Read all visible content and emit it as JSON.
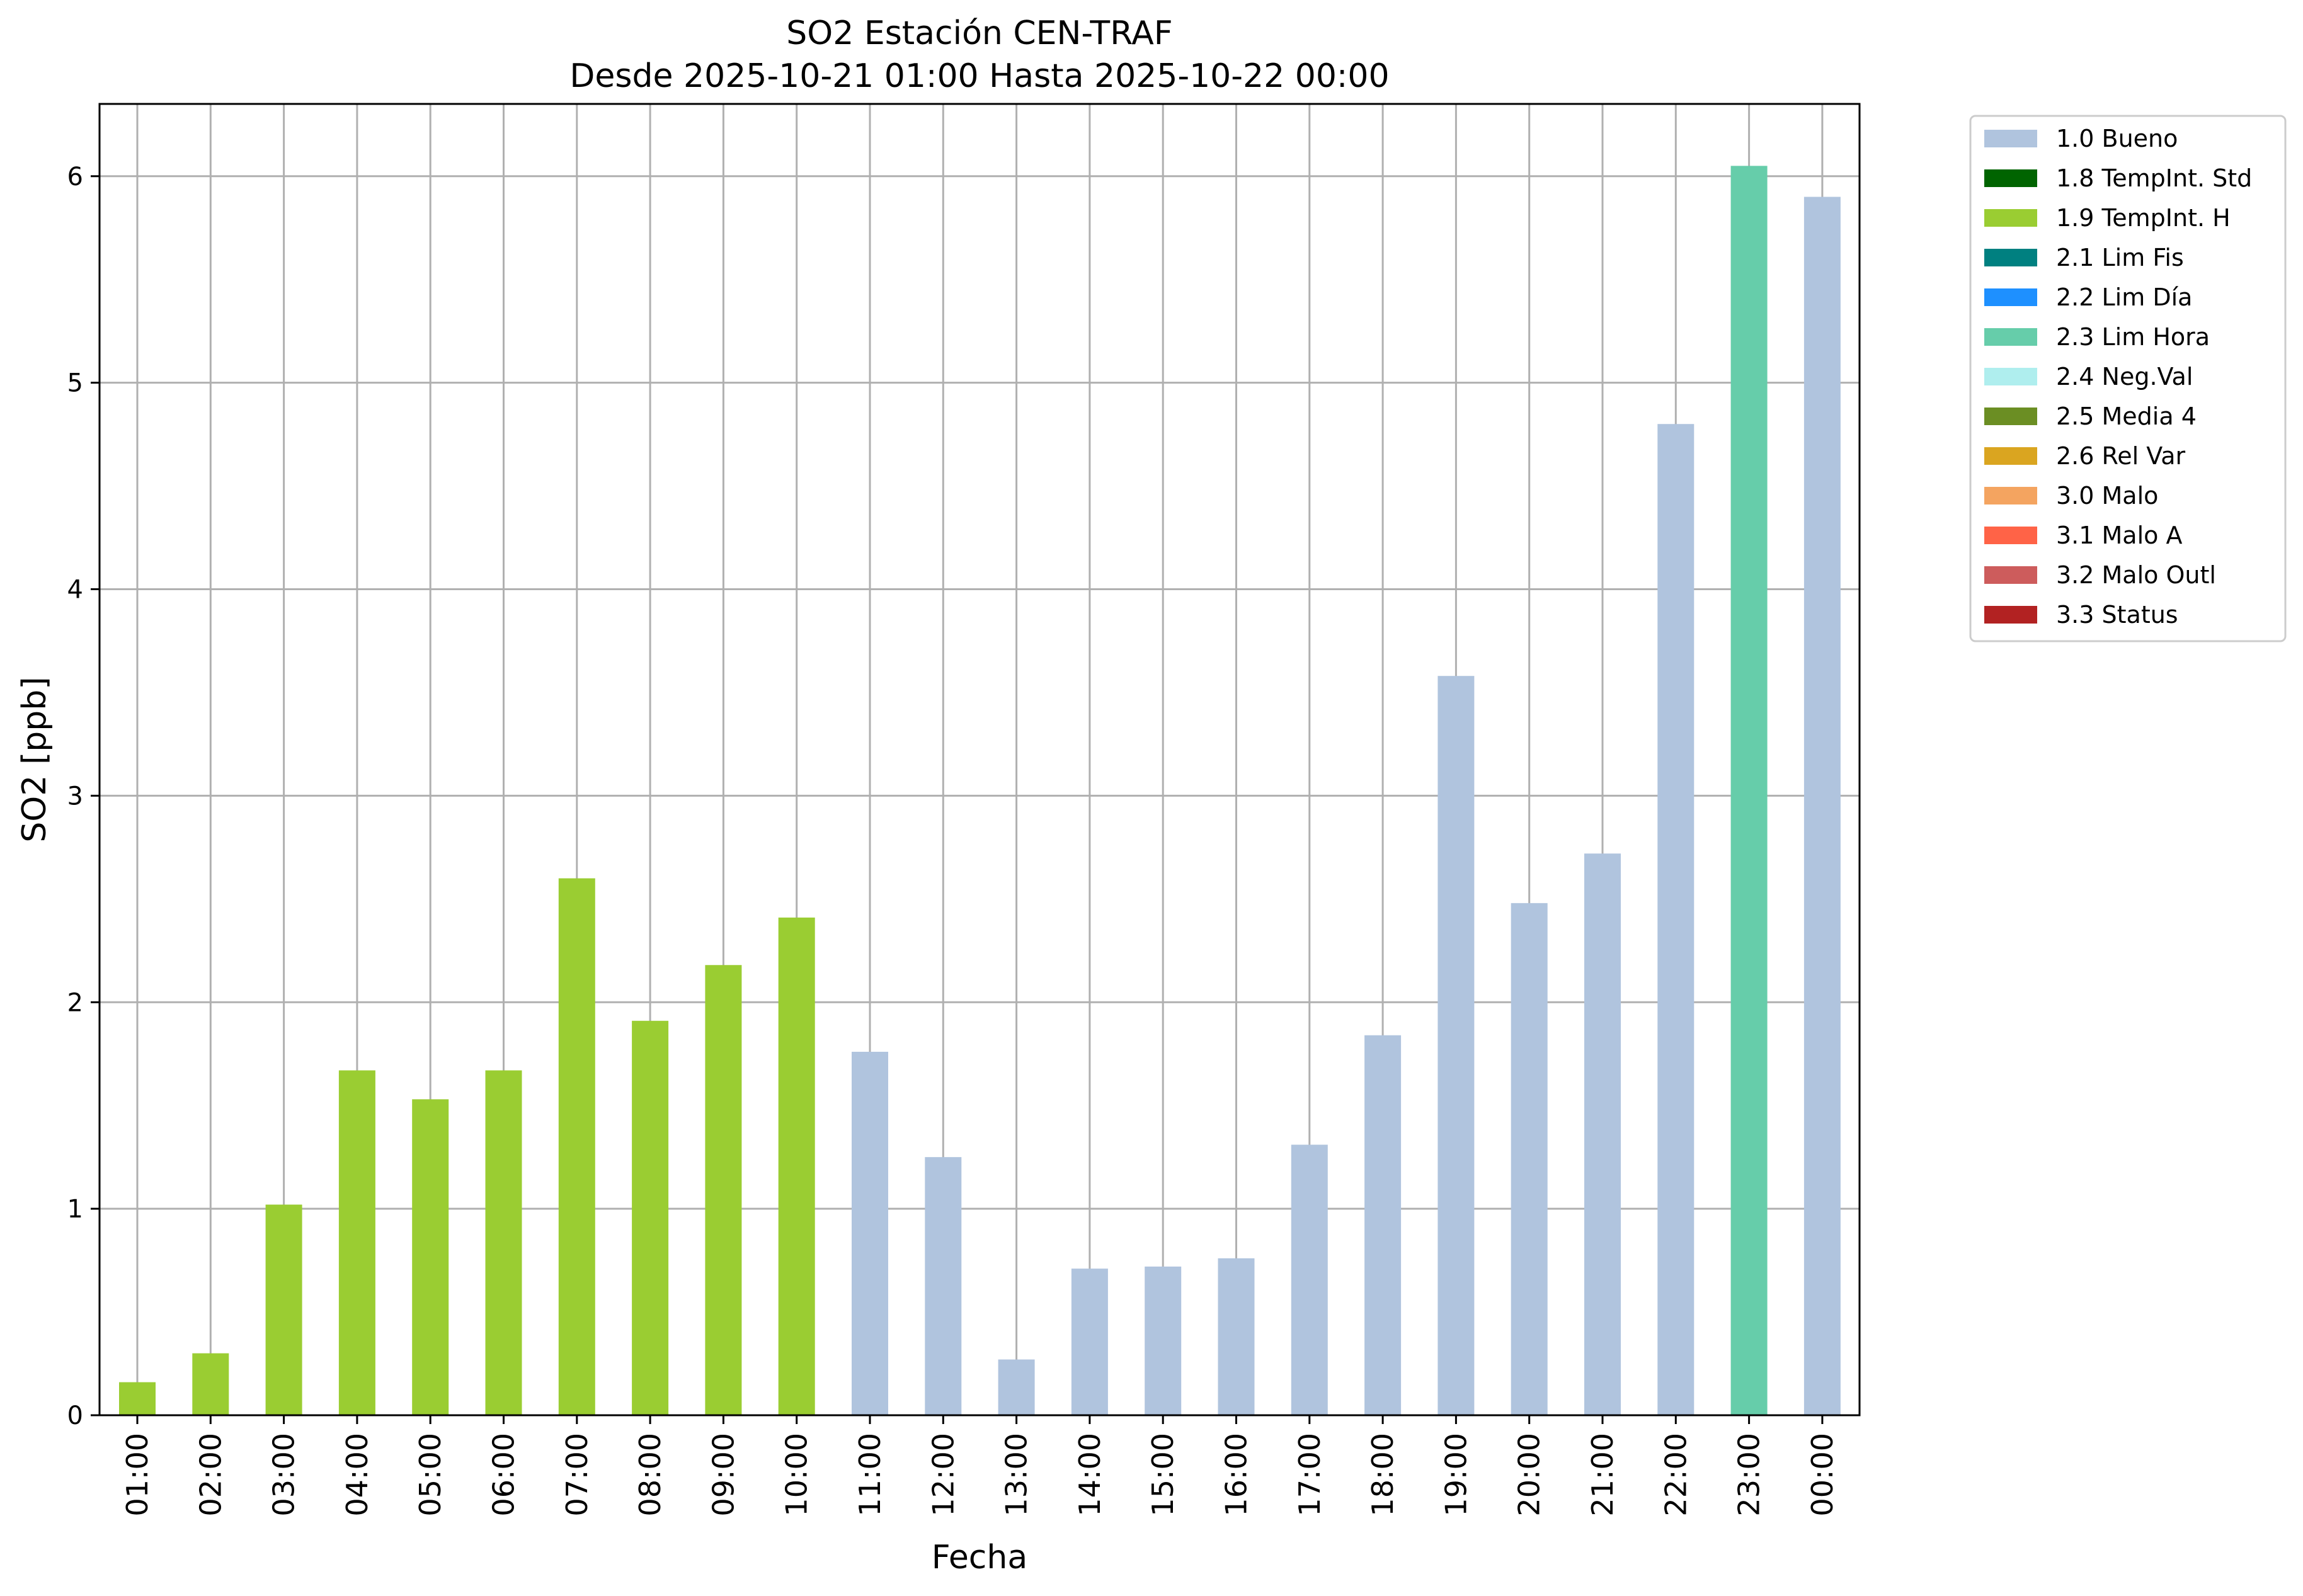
{
  "chart_data": {
    "type": "bar",
    "title": "SO2 Estación CEN-TRAF",
    "subtitle": "Desde 2025-10-21 01:00 Hasta 2025-10-22 00:00",
    "xlabel": "Fecha",
    "ylabel": "SO2 [ppb]",
    "ylim": [
      0,
      6.35
    ],
    "yticks": [
      0,
      1,
      2,
      3,
      4,
      5,
      6
    ],
    "grid": true,
    "legend_position": "outside-top-right",
    "categories": [
      "01:00",
      "02:00",
      "03:00",
      "04:00",
      "05:00",
      "06:00",
      "07:00",
      "08:00",
      "09:00",
      "10:00",
      "11:00",
      "12:00",
      "13:00",
      "14:00",
      "15:00",
      "16:00",
      "17:00",
      "18:00",
      "19:00",
      "20:00",
      "21:00",
      "22:00",
      "23:00",
      "00:00"
    ],
    "values": [
      0.16,
      0.3,
      1.02,
      1.67,
      1.53,
      1.67,
      2.6,
      1.91,
      2.18,
      2.41,
      1.76,
      1.25,
      0.27,
      0.71,
      0.72,
      0.76,
      1.31,
      1.84,
      3.58,
      2.48,
      2.72,
      4.8,
      6.05,
      5.9
    ],
    "flags": [
      "1.9 TempInt. H",
      "1.9 TempInt. H",
      "1.9 TempInt. H",
      "1.9 TempInt. H",
      "1.9 TempInt. H",
      "1.9 TempInt. H",
      "1.9 TempInt. H",
      "1.9 TempInt. H",
      "1.9 TempInt. H",
      "1.9 TempInt. H",
      "1.0 Bueno",
      "1.0 Bueno",
      "1.0 Bueno",
      "1.0 Bueno",
      "1.0 Bueno",
      "1.0 Bueno",
      "1.0 Bueno",
      "1.0 Bueno",
      "1.0 Bueno",
      "1.0 Bueno",
      "1.0 Bueno",
      "1.0 Bueno",
      "2.3 Lim Hora",
      "1.0 Bueno"
    ],
    "legend": [
      {
        "label": "1.0 Bueno",
        "color": "#b0c4de"
      },
      {
        "label": "1.8 TempInt. Std",
        "color": "#006400"
      },
      {
        "label": "1.9 TempInt. H",
        "color": "#9acd32"
      },
      {
        "label": "2.1 Lim Fis",
        "color": "#008080"
      },
      {
        "label": "2.2 Lim Día",
        "color": "#1e90ff"
      },
      {
        "label": "2.3 Lim Hora",
        "color": "#66cdaa"
      },
      {
        "label": "2.4 Neg.Val",
        "color": "#afeeee"
      },
      {
        "label": "2.5 Media 4",
        "color": "#6b8e23"
      },
      {
        "label": "2.6 Rel Var",
        "color": "#daa520"
      },
      {
        "label": "3.0 Malo",
        "color": "#f4a460"
      },
      {
        "label": "3.1 Malo A",
        "color": "#ff6347"
      },
      {
        "label": "3.2 Malo Outl",
        "color": "#cd5c5c"
      },
      {
        "label": "3.3 Status",
        "color": "#b22222"
      }
    ]
  }
}
